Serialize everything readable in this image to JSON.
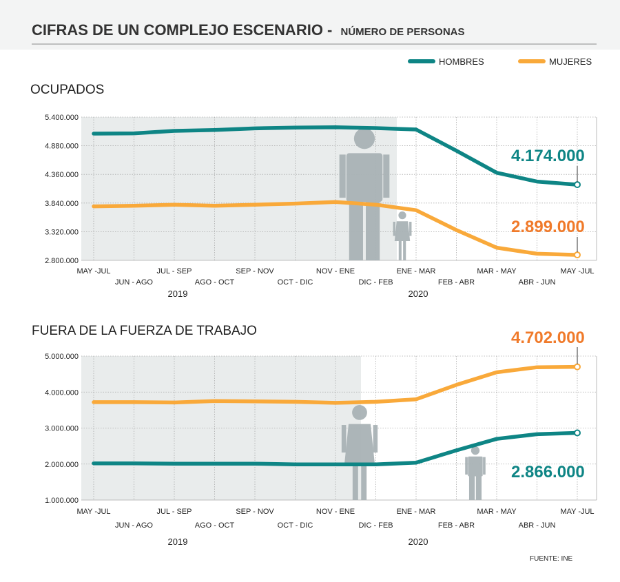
{
  "header": {
    "title": "CIFRAS DE UN COMPLEJO ESCENARIO -",
    "subtitle": "NÚMERO DE PERSONAS"
  },
  "legend": [
    {
      "label": "HOMBRES",
      "color": "#0e8585"
    },
    {
      "label": "MUJERES",
      "color": "#f9a93a"
    }
  ],
  "source": "FUENTE: INE",
  "colors": {
    "hombres": "#0e8585",
    "mujeres": "#f9a93a",
    "annot_mujeres": "#f07a2a",
    "shade": "#e9ecec",
    "grid": "#aaaaaa",
    "silhouette": "#a9b3b6"
  },
  "chart_data": [
    {
      "type": "line",
      "title": "OCUPADOS",
      "categories": [
        "MAY -JUL",
        "JUN - AGO",
        "JUL - SEP",
        "AGO - OCT",
        "SEP - NOV",
        "OCT - DIC",
        "NOV - ENE",
        "DIC - FEB",
        "ENE - MAR",
        "FEB - ABR",
        "MAR - MAY",
        "ABR - JUN",
        "MAY -JUL"
      ],
      "years": [
        "2019",
        "2020"
      ],
      "ylim": [
        2800000,
        5400000
      ],
      "yticks": [
        "5.400.000",
        "4.880.000",
        "4.360.000",
        "3.840.000",
        "3.320.000",
        "2.800.000"
      ],
      "series": [
        {
          "name": "HOMBRES",
          "values": [
            5100000,
            5105000,
            5150000,
            5165000,
            5195000,
            5210000,
            5215000,
            5200000,
            5175000,
            4790000,
            4390000,
            4230000,
            4174000
          ]
        },
        {
          "name": "MUJERES",
          "values": [
            3780000,
            3790000,
            3810000,
            3790000,
            3810000,
            3830000,
            3860000,
            3810000,
            3710000,
            3350000,
            3030000,
            2920000,
            2899000
          ]
        }
      ],
      "annotations": [
        {
          "series": "HOMBRES",
          "text": "4.174.000"
        },
        {
          "series": "MUJERES",
          "text": "2.899.000"
        }
      ]
    },
    {
      "type": "line",
      "title": "FUERA DE LA FUERZA DE TRABAJO",
      "categories": [
        "MAY -JUL",
        "JUN - AGO",
        "JUL - SEP",
        "AGO - OCT",
        "SEP - NOV",
        "OCT - DIC",
        "NOV - ENE",
        "DIC - FEB",
        "ENE - MAR",
        "FEB - ABR",
        "MAR - MAY",
        "ABR - JUN",
        "MAY -JUL"
      ],
      "years": [
        "2019",
        "2020"
      ],
      "ylim": [
        1000000,
        5000000
      ],
      "yticks": [
        "5.000.000",
        "4.000.000",
        "3.000.000",
        "2.000.000",
        "1.000.000"
      ],
      "series": [
        {
          "name": "MUJERES",
          "values": [
            3720000,
            3720000,
            3710000,
            3750000,
            3740000,
            3730000,
            3700000,
            3730000,
            3800000,
            4200000,
            4550000,
            4690000,
            4702000
          ]
        },
        {
          "name": "HOMBRES",
          "values": [
            2020000,
            2020000,
            2010000,
            2010000,
            2010000,
            1990000,
            1990000,
            1990000,
            2040000,
            2380000,
            2700000,
            2830000,
            2866000
          ]
        }
      ],
      "annotations": [
        {
          "series": "MUJERES",
          "text": "4.702.000"
        },
        {
          "series": "HOMBRES",
          "text": "2.866.000"
        }
      ]
    }
  ]
}
